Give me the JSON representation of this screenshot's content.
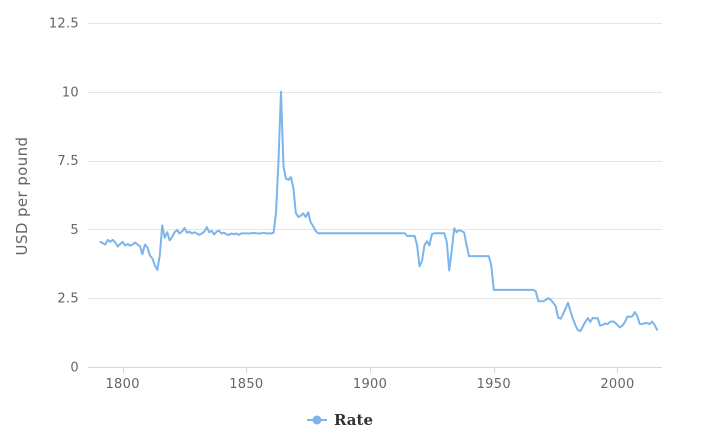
{
  "chart": {
    "y_axis_title": "USD per pound",
    "legend_label": "Rate",
    "colors": {
      "line": "#7cb5ec",
      "grid": "#e6e6e6",
      "axis_line": "#ccd6eb",
      "tick_label": "#666666",
      "legend_text": "#333333",
      "background": "#ffffff"
    }
  },
  "chart_data": {
    "type": "line",
    "title": "",
    "xlabel": "",
    "ylabel": "USD per pound",
    "ylim": [
      0,
      12.5
    ],
    "xlim": [
      1786,
      2018
    ],
    "yticks": [
      0,
      2.5,
      5,
      7.5,
      10,
      12.5
    ],
    "xticks": [
      1800,
      1850,
      1900,
      1950,
      2000
    ],
    "grid": true,
    "legend_position": "bottom-center",
    "series": [
      {
        "name": "Rate",
        "color": "#7cb5ec",
        "points": [
          [
            1791,
            4.55
          ],
          [
            1792,
            4.5
          ],
          [
            1793,
            4.45
          ],
          [
            1794,
            4.62
          ],
          [
            1795,
            4.55
          ],
          [
            1796,
            4.62
          ],
          [
            1797,
            4.53
          ],
          [
            1798,
            4.38
          ],
          [
            1799,
            4.47
          ],
          [
            1800,
            4.55
          ],
          [
            1801,
            4.42
          ],
          [
            1802,
            4.47
          ],
          [
            1803,
            4.41
          ],
          [
            1804,
            4.45
          ],
          [
            1805,
            4.52
          ],
          [
            1806,
            4.45
          ],
          [
            1807,
            4.39
          ],
          [
            1808,
            4.1
          ],
          [
            1809,
            4.45
          ],
          [
            1810,
            4.35
          ],
          [
            1811,
            4.05
          ],
          [
            1812,
            3.95
          ],
          [
            1813,
            3.7
          ],
          [
            1814,
            3.52
          ],
          [
            1815,
            4.05
          ],
          [
            1816,
            5.15
          ],
          [
            1817,
            4.7
          ],
          [
            1818,
            4.9
          ],
          [
            1819,
            4.6
          ],
          [
            1820,
            4.72
          ],
          [
            1821,
            4.9
          ],
          [
            1822,
            4.98
          ],
          [
            1823,
            4.85
          ],
          [
            1824,
            4.92
          ],
          [
            1825,
            5.05
          ],
          [
            1826,
            4.88
          ],
          [
            1827,
            4.92
          ],
          [
            1828,
            4.85
          ],
          [
            1829,
            4.9
          ],
          [
            1830,
            4.85
          ],
          [
            1831,
            4.8
          ],
          [
            1832,
            4.85
          ],
          [
            1833,
            4.92
          ],
          [
            1834,
            5.08
          ],
          [
            1835,
            4.9
          ],
          [
            1836,
            4.95
          ],
          [
            1837,
            4.82
          ],
          [
            1838,
            4.92
          ],
          [
            1839,
            4.95
          ],
          [
            1840,
            4.85
          ],
          [
            1841,
            4.88
          ],
          [
            1842,
            4.82
          ],
          [
            1843,
            4.8
          ],
          [
            1844,
            4.85
          ],
          [
            1845,
            4.83
          ],
          [
            1846,
            4.85
          ],
          [
            1847,
            4.8
          ],
          [
            1848,
            4.86
          ],
          [
            1849,
            4.85
          ],
          [
            1850,
            4.86
          ],
          [
            1851,
            4.85
          ],
          [
            1852,
            4.86
          ],
          [
            1853,
            4.87
          ],
          [
            1854,
            4.86
          ],
          [
            1855,
            4.85
          ],
          [
            1856,
            4.86
          ],
          [
            1857,
            4.88
          ],
          [
            1858,
            4.85
          ],
          [
            1859,
            4.86
          ],
          [
            1860,
            4.85
          ],
          [
            1861,
            4.88
          ],
          [
            1862,
            5.6
          ],
          [
            1863,
            7.5
          ],
          [
            1864,
            10
          ],
          [
            1865,
            7.3
          ],
          [
            1866,
            6.85
          ],
          [
            1867,
            6.8
          ],
          [
            1868,
            6.9
          ],
          [
            1869,
            6.5
          ],
          [
            1870,
            5.6
          ],
          [
            1871,
            5.45
          ],
          [
            1872,
            5.5
          ],
          [
            1873,
            5.58
          ],
          [
            1874,
            5.45
          ],
          [
            1875,
            5.62
          ],
          [
            1876,
            5.25
          ],
          [
            1877,
            5.12
          ],
          [
            1878,
            4.95
          ],
          [
            1879,
            4.86
          ],
          [
            1880,
            4.86
          ],
          [
            1881,
            4.86
          ],
          [
            1882,
            4.86
          ],
          [
            1883,
            4.86
          ],
          [
            1884,
            4.86
          ],
          [
            1885,
            4.86
          ],
          [
            1886,
            4.86
          ],
          [
            1887,
            4.86
          ],
          [
            1888,
            4.86
          ],
          [
            1889,
            4.86
          ],
          [
            1890,
            4.86
          ],
          [
            1891,
            4.86
          ],
          [
            1892,
            4.86
          ],
          [
            1893,
            4.86
          ],
          [
            1894,
            4.86
          ],
          [
            1895,
            4.86
          ],
          [
            1896,
            4.86
          ],
          [
            1897,
            4.86
          ],
          [
            1898,
            4.86
          ],
          [
            1899,
            4.86
          ],
          [
            1900,
            4.86
          ],
          [
            1901,
            4.86
          ],
          [
            1902,
            4.86
          ],
          [
            1903,
            4.86
          ],
          [
            1904,
            4.86
          ],
          [
            1905,
            4.86
          ],
          [
            1906,
            4.86
          ],
          [
            1907,
            4.86
          ],
          [
            1908,
            4.86
          ],
          [
            1909,
            4.86
          ],
          [
            1910,
            4.86
          ],
          [
            1911,
            4.86
          ],
          [
            1912,
            4.86
          ],
          [
            1913,
            4.86
          ],
          [
            1914,
            4.86
          ],
          [
            1915,
            4.76
          ],
          [
            1916,
            4.77
          ],
          [
            1917,
            4.76
          ],
          [
            1918,
            4.76
          ],
          [
            1919,
            4.43
          ],
          [
            1920,
            3.66
          ],
          [
            1921,
            3.85
          ],
          [
            1922,
            4.43
          ],
          [
            1923,
            4.57
          ],
          [
            1924,
            4.42
          ],
          [
            1925,
            4.83
          ],
          [
            1926,
            4.86
          ],
          [
            1927,
            4.86
          ],
          [
            1928,
            4.86
          ],
          [
            1929,
            4.86
          ],
          [
            1930,
            4.86
          ],
          [
            1931,
            4.54
          ],
          [
            1932,
            3.51
          ],
          [
            1933,
            4.22
          ],
          [
            1934,
            5.04
          ],
          [
            1935,
            4.9
          ],
          [
            1936,
            4.97
          ],
          [
            1937,
            4.94
          ],
          [
            1938,
            4.89
          ],
          [
            1939,
            4.44
          ],
          [
            1940,
            4.03
          ],
          [
            1941,
            4.03
          ],
          [
            1942,
            4.03
          ],
          [
            1943,
            4.03
          ],
          [
            1944,
            4.03
          ],
          [
            1945,
            4.03
          ],
          [
            1946,
            4.03
          ],
          [
            1947,
            4.03
          ],
          [
            1948,
            4.03
          ],
          [
            1949,
            3.69
          ],
          [
            1950,
            2.8
          ],
          [
            1951,
            2.8
          ],
          [
            1952,
            2.8
          ],
          [
            1953,
            2.8
          ],
          [
            1954,
            2.8
          ],
          [
            1955,
            2.8
          ],
          [
            1956,
            2.8
          ],
          [
            1957,
            2.8
          ],
          [
            1958,
            2.8
          ],
          [
            1959,
            2.8
          ],
          [
            1960,
            2.8
          ],
          [
            1961,
            2.8
          ],
          [
            1962,
            2.8
          ],
          [
            1963,
            2.8
          ],
          [
            1964,
            2.8
          ],
          [
            1965,
            2.8
          ],
          [
            1966,
            2.8
          ],
          [
            1967,
            2.75
          ],
          [
            1968,
            2.39
          ],
          [
            1969,
            2.39
          ],
          [
            1970,
            2.39
          ],
          [
            1971,
            2.44
          ],
          [
            1972,
            2.5
          ],
          [
            1973,
            2.45
          ],
          [
            1974,
            2.34
          ],
          [
            1975,
            2.22
          ],
          [
            1976,
            1.8
          ],
          [
            1977,
            1.75
          ],
          [
            1978,
            1.92
          ],
          [
            1979,
            2.12
          ],
          [
            1980,
            2.33
          ],
          [
            1981,
            2.02
          ],
          [
            1982,
            1.75
          ],
          [
            1983,
            1.52
          ],
          [
            1984,
            1.34
          ],
          [
            1985,
            1.3
          ],
          [
            1986,
            1.47
          ],
          [
            1987,
            1.64
          ],
          [
            1988,
            1.78
          ],
          [
            1989,
            1.64
          ],
          [
            1990,
            1.78
          ],
          [
            1991,
            1.77
          ],
          [
            1992,
            1.77
          ],
          [
            1993,
            1.5
          ],
          [
            1994,
            1.53
          ],
          [
            1995,
            1.58
          ],
          [
            1996,
            1.56
          ],
          [
            1997,
            1.64
          ],
          [
            1998,
            1.66
          ],
          [
            1999,
            1.62
          ],
          [
            2000,
            1.52
          ],
          [
            2001,
            1.44
          ],
          [
            2002,
            1.5
          ],
          [
            2003,
            1.63
          ],
          [
            2004,
            1.83
          ],
          [
            2005,
            1.82
          ],
          [
            2006,
            1.84
          ],
          [
            2007,
            2.0
          ],
          [
            2008,
            1.85
          ],
          [
            2009,
            1.57
          ],
          [
            2010,
            1.55
          ],
          [
            2011,
            1.6
          ],
          [
            2012,
            1.59
          ],
          [
            2013,
            1.56
          ],
          [
            2014,
            1.65
          ],
          [
            2015,
            1.53
          ],
          [
            2016,
            1.35
          ]
        ]
      }
    ]
  }
}
